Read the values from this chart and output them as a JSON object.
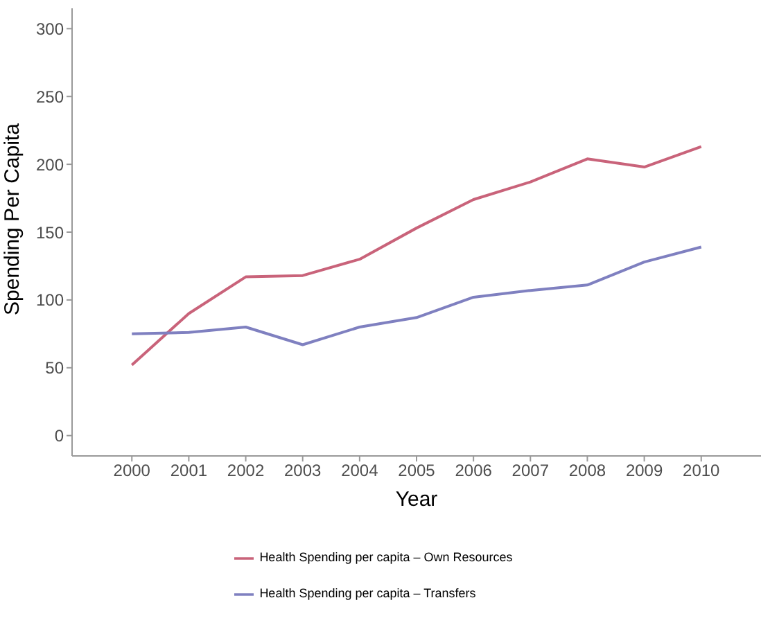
{
  "chart_data": {
    "type": "line",
    "xlabel": "Year",
    "ylabel": "Spending Per Capita",
    "categories": [
      "2000",
      "2001",
      "2002",
      "2003",
      "2004",
      "2005",
      "2006",
      "2007",
      "2008",
      "2009",
      "2010"
    ],
    "series": [
      {
        "name": "Health Spending per capita – Own Resources",
        "color": "#c9637a",
        "values": [
          52,
          90,
          117,
          118,
          130,
          153,
          174,
          187,
          204,
          198,
          213
        ]
      },
      {
        "name": "Health Spending per capita – Transfers",
        "color": "#7f80c0",
        "values": [
          75,
          76,
          80,
          67,
          80,
          87,
          102,
          107,
          111,
          128,
          139
        ]
      }
    ],
    "ylim": [
      -15,
      315
    ],
    "yticks": [
      0,
      50,
      100,
      150,
      200,
      250,
      300
    ],
    "grid": false,
    "legend": "bottom",
    "marker": "none",
    "line_style": "solid"
  }
}
